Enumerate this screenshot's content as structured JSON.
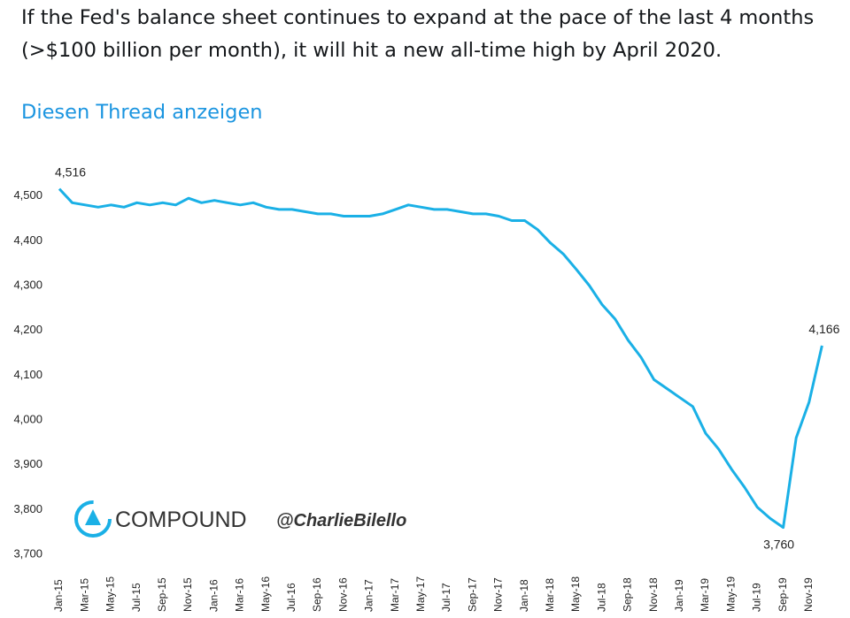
{
  "tweet": {
    "text": "If the Fed's balance sheet continues to expand at the pace of the last 4 months (>$100 billion per month), it will hit a new all-time high by April 2020.",
    "link": "Diesen Thread anzeigen"
  },
  "chart_data": {
    "type": "line",
    "categories": [
      "Jan-15",
      null,
      "Mar-15",
      null,
      "May-15",
      null,
      "Jul-15",
      null,
      "Sep-15",
      null,
      "Nov-15",
      null,
      "Jan-16",
      null,
      "Mar-16",
      null,
      "May-16",
      null,
      "Jul-16",
      null,
      "Sep-16",
      null,
      "Nov-16",
      null,
      "Jan-17",
      null,
      "Mar-17",
      null,
      "May-17",
      null,
      "Jul-17",
      null,
      "Sep-17",
      null,
      "Nov-17",
      null,
      "Jan-18",
      null,
      "Mar-18",
      null,
      "May-18",
      null,
      "Jul-18",
      null,
      "Sep-18",
      null,
      "Nov-18",
      null,
      "Jan-19",
      null,
      "Mar-19",
      null,
      "May-19",
      null,
      "Jul-19",
      null,
      "Sep-19",
      null,
      "Nov-19",
      null
    ],
    "values": [
      4516,
      4485,
      4480,
      4475,
      4480,
      4475,
      4485,
      4480,
      4485,
      4480,
      4495,
      4485,
      4490,
      4485,
      4480,
      4485,
      4475,
      4470,
      4470,
      4465,
      4460,
      4460,
      4455,
      4455,
      4455,
      4460,
      4470,
      4480,
      4475,
      4470,
      4470,
      4465,
      4460,
      4460,
      4455,
      4445,
      4445,
      4425,
      4395,
      4370,
      4336,
      4300,
      4257,
      4225,
      4178,
      4140,
      4090,
      4070,
      4050,
      4030,
      3970,
      3935,
      3890,
      3850,
      3805,
      3780,
      3760,
      3960,
      4040,
      4166
    ],
    "value_labels": [
      "4,516",
      null,
      null,
      null,
      null,
      null,
      null,
      null,
      null,
      null,
      null,
      null,
      null,
      null,
      null,
      null,
      null,
      null,
      null,
      null,
      null,
      null,
      null,
      null,
      null,
      null,
      null,
      null,
      null,
      null,
      null,
      null,
      null,
      null,
      null,
      null,
      null,
      null,
      null,
      null,
      null,
      null,
      null,
      null,
      null,
      null,
      null,
      null,
      null,
      null,
      null,
      null,
      null,
      null,
      null,
      null,
      "3,760",
      null,
      null,
      "4,166"
    ],
    "color": "#1ab0e6",
    "ylim": [
      3700,
      4600
    ],
    "yticks": [
      {
        "value": 3700,
        "label": "3,700"
      },
      {
        "value": 3800,
        "label": "3,800"
      },
      {
        "value": 3900,
        "label": "3,900"
      },
      {
        "value": 4000,
        "label": "4,000"
      },
      {
        "value": 4100,
        "label": "4,100"
      },
      {
        "value": 4200,
        "label": "4,200"
      },
      {
        "value": 4300,
        "label": "4,300"
      },
      {
        "value": 4400,
        "label": "4,400"
      },
      {
        "value": 4500,
        "label": "4,500"
      }
    ],
    "grid": false,
    "watermark": {
      "brand": "COMPOUND",
      "handle": "@CharlieBilello"
    }
  }
}
